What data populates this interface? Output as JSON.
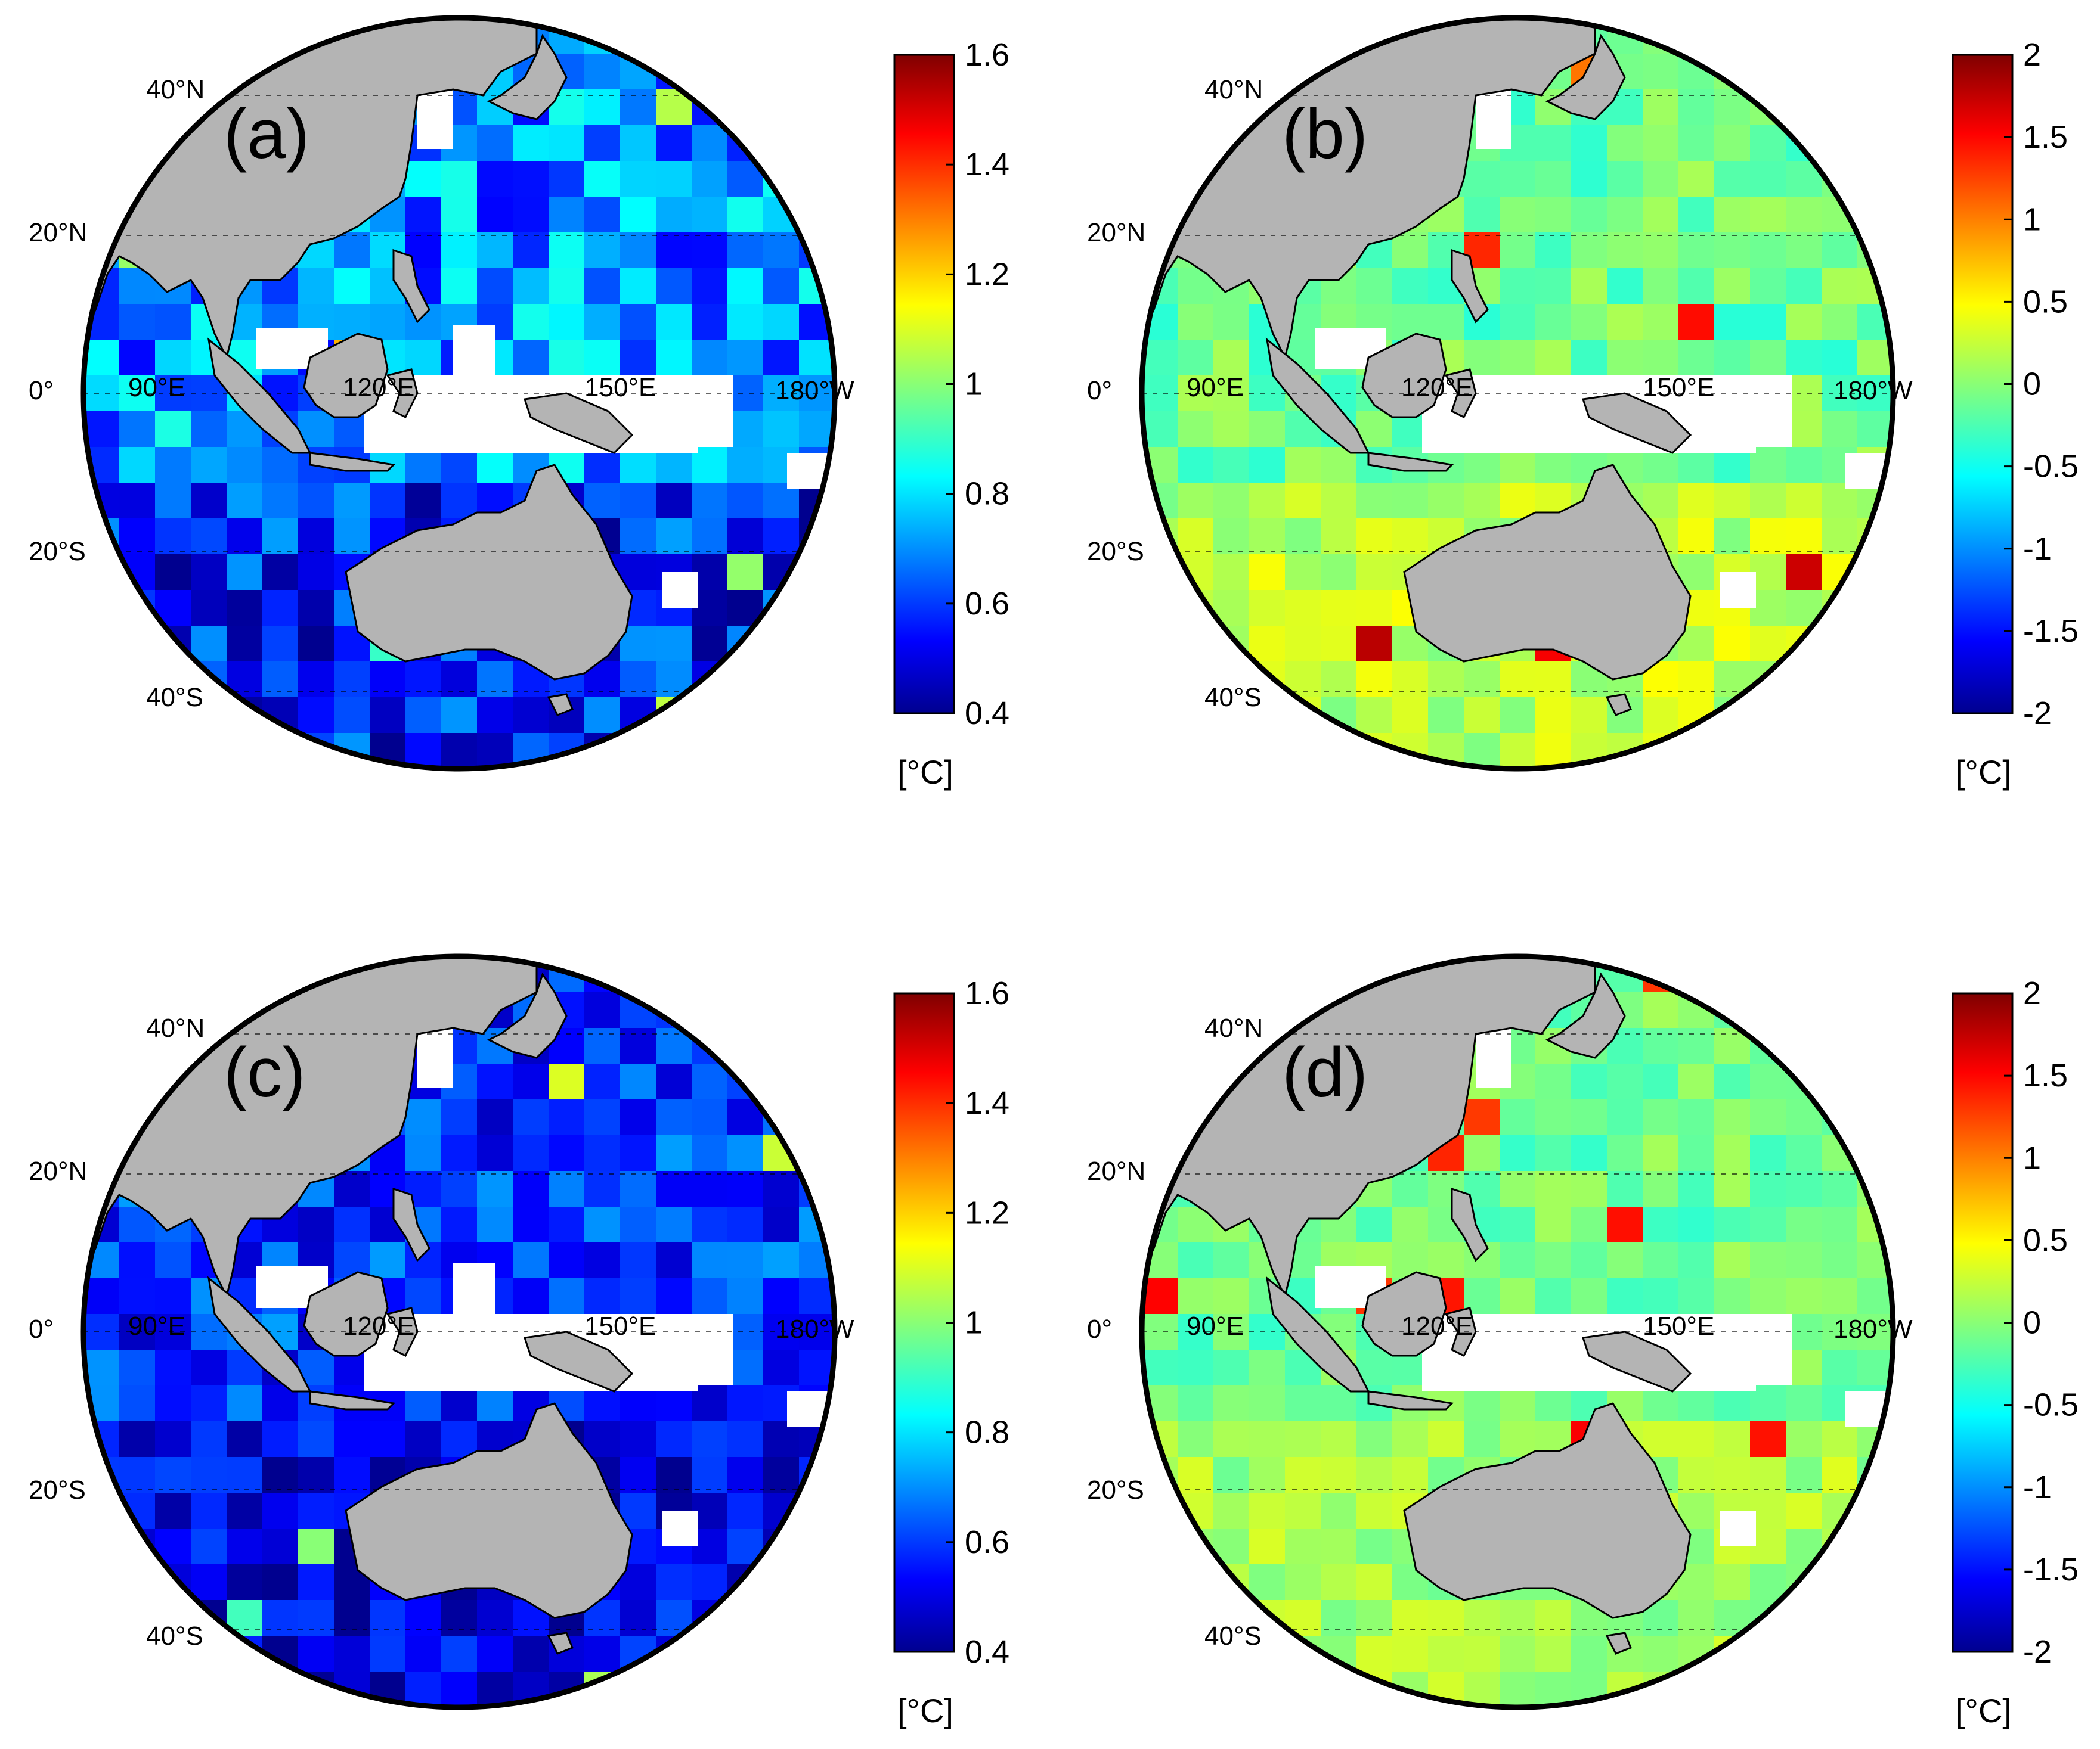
{
  "figure": {
    "panels": [
      {
        "id": "a",
        "label": "(a)",
        "lat_labels": [
          "40°N",
          "20°N",
          "0°",
          "20°S",
          "40°S"
        ],
        "lon_labels": [
          "90°E",
          "120°E",
          "150°E",
          "180°W"
        ],
        "colorbar": {
          "ticks": [
            "1.6",
            "1.4",
            "1.2",
            "1",
            "0.8",
            "0.6",
            "0.4"
          ],
          "unit": "[°C]",
          "range": [
            0.4,
            1.6
          ],
          "colormap": "jet"
        }
      },
      {
        "id": "b",
        "label": "(b)",
        "lat_labels": [
          "40°N",
          "20°N",
          "0°",
          "20°S",
          "40°S"
        ],
        "lon_labels": [
          "90°E",
          "120°E",
          "150°E",
          "180°W"
        ],
        "colorbar": {
          "ticks": [
            "2",
            "1.5",
            "1",
            "0.5",
            "0",
            "-0.5",
            "-1",
            "-1.5",
            "-2"
          ],
          "unit": "[°C]",
          "range": [
            -2,
            2
          ],
          "colormap": "jet"
        }
      },
      {
        "id": "c",
        "label": "(c)",
        "lat_labels": [
          "40°N",
          "20°N",
          "0°",
          "20°S",
          "40°S"
        ],
        "lon_labels": [
          "90°E",
          "120°E",
          "150°E",
          "180°W"
        ],
        "colorbar": {
          "ticks": [
            "1.6",
            "1.4",
            "1.2",
            "1",
            "0.8",
            "0.6",
            "0.4"
          ],
          "unit": "[°C]",
          "range": [
            0.4,
            1.6
          ],
          "colormap": "jet"
        }
      },
      {
        "id": "d",
        "label": "(d)",
        "lat_labels": [
          "40°N",
          "20°N",
          "0°",
          "20°S",
          "40°S"
        ],
        "lon_labels": [
          "90°E",
          "120°E",
          "150°E",
          "180°W"
        ],
        "colorbar": {
          "ticks": [
            "2",
            "1.5",
            "1",
            "0.5",
            "0",
            "-0.5",
            "-1",
            "-1.5",
            "-2"
          ],
          "unit": "[°C]",
          "range": [
            -2,
            2
          ],
          "colormap": "jet"
        }
      }
    ]
  },
  "colors": {
    "land": "#b4b4b4",
    "missing": "#ffffff",
    "outline": "#000000",
    "jet_stops": [
      "#00008f",
      "#0000ff",
      "#00ffff",
      "#ffff00",
      "#ff0000",
      "#800000"
    ]
  }
}
